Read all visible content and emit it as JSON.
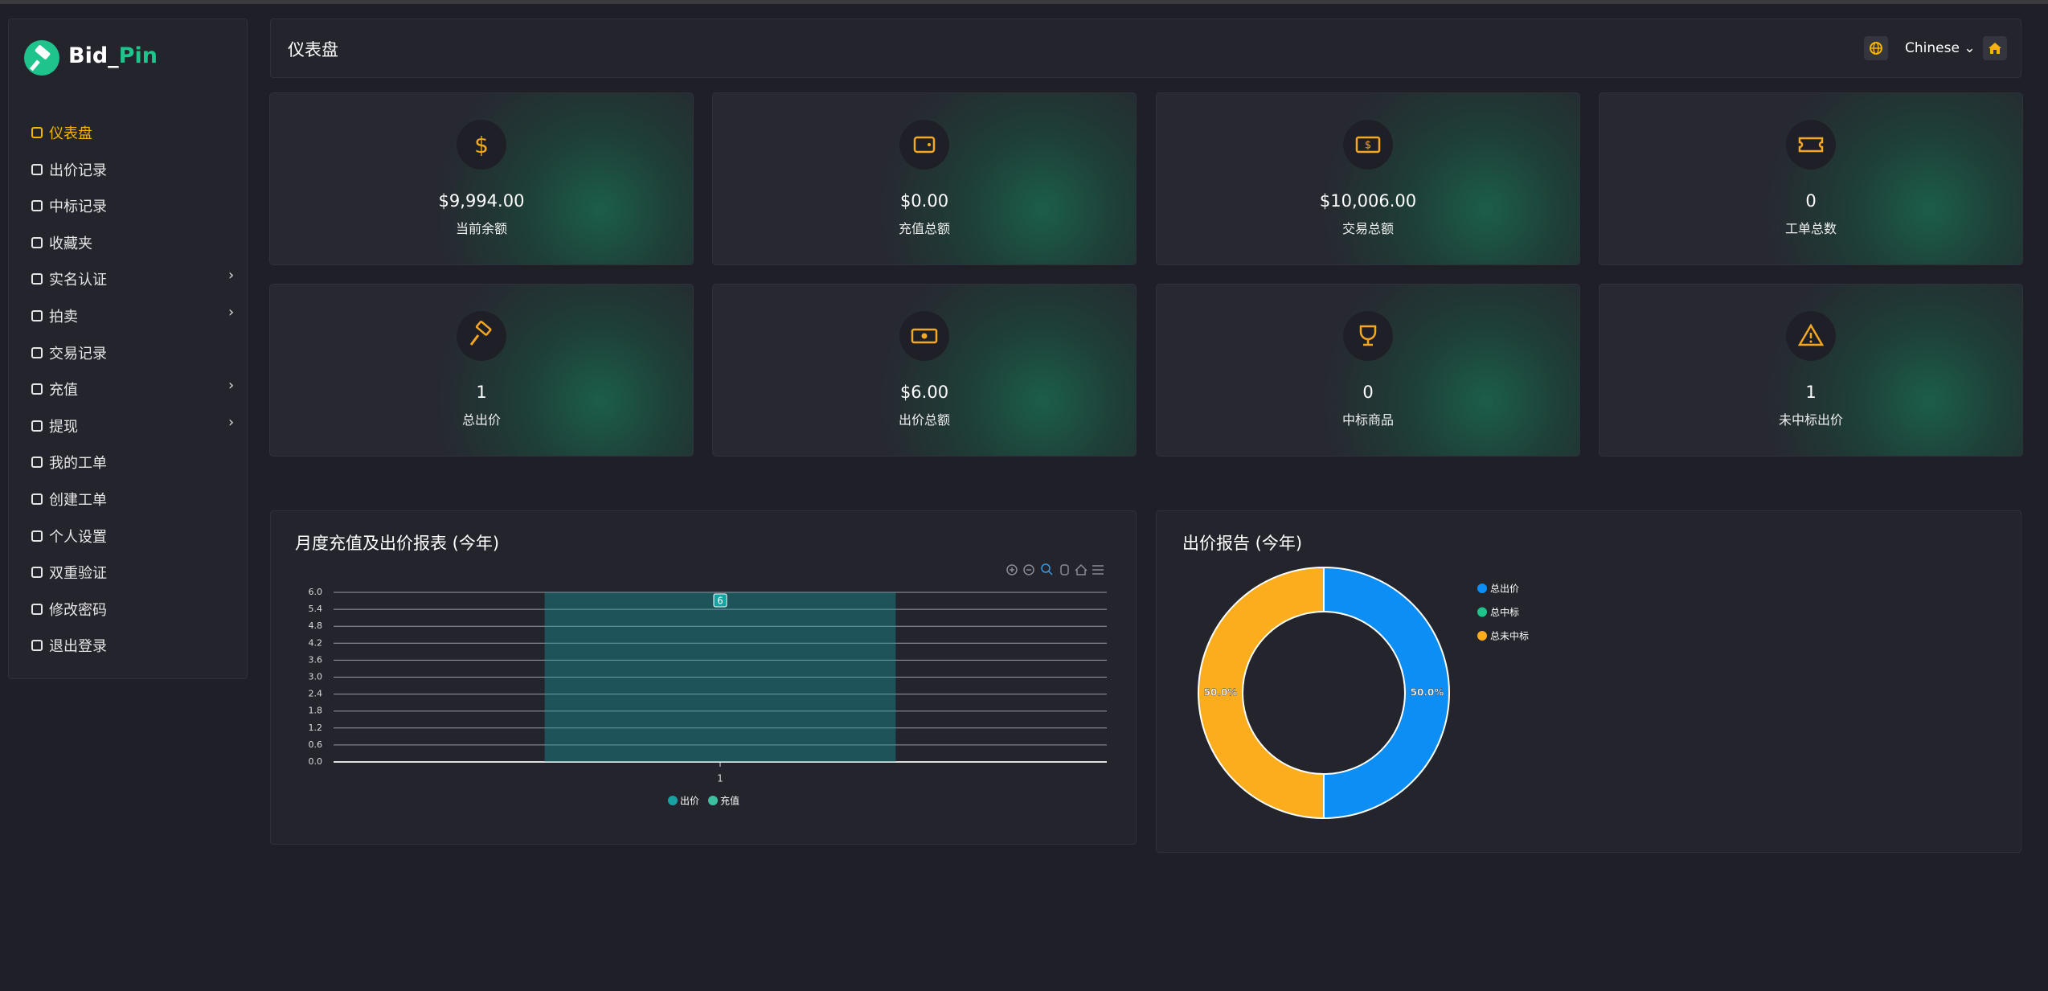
{
  "brand": {
    "first": "Bid_",
    "second": "Pin"
  },
  "menu": [
    {
      "label": "仪表盘",
      "active": true
    },
    {
      "label": "出价记录"
    },
    {
      "label": "中标记录"
    },
    {
      "label": "收藏夹"
    },
    {
      "label": "实名认证",
      "submenu": true
    },
    {
      "label": "拍卖",
      "submenu": true
    },
    {
      "label": "交易记录"
    },
    {
      "label": "充值",
      "submenu": true
    },
    {
      "label": "提现",
      "submenu": true
    },
    {
      "label": "我的工单"
    },
    {
      "label": "创建工单"
    },
    {
      "label": "个人设置"
    },
    {
      "label": "双重验证"
    },
    {
      "label": "修改密码"
    },
    {
      "label": "退出登录"
    }
  ],
  "header": {
    "title": "仪表盘",
    "language": "Chinese"
  },
  "cards": [
    {
      "value": "$9,994.00",
      "label": "当前余额"
    },
    {
      "value": "$0.00",
      "label": "充值总额"
    },
    {
      "value": "$10,006.00",
      "label": "交易总额"
    },
    {
      "value": "0",
      "label": "工单总数"
    },
    {
      "value": "1",
      "label": "总出价"
    },
    {
      "value": "$6.00",
      "label": "出价总额"
    },
    {
      "value": "0",
      "label": "中标商品"
    },
    {
      "value": "1",
      "label": "未中标出价"
    }
  ],
  "chart_data": [
    {
      "type": "bar",
      "title": "月度充值及出价报表 (今年)",
      "categories": [
        "1"
      ],
      "series": [
        {
          "name": "出价",
          "color": "#17a2a2",
          "values": [
            6
          ]
        },
        {
          "name": "充值",
          "color": "#3dbf9f",
          "values": [
            0
          ]
        }
      ],
      "ylim": [
        0,
        6
      ],
      "yticks": [
        {
          "value": 0,
          "label": "0.0"
        },
        0.6,
        1.2,
        1.8,
        2.4,
        {
          "value": 3,
          "label": "3.0"
        },
        3.6,
        4.2,
        4.8,
        5.4,
        {
          "value": 6,
          "label": "6.0"
        }
      ],
      "grid": true,
      "legend": "bottom"
    },
    {
      "type": "pie",
      "title": "出价报告 (今年)",
      "categories": [
        "总出价",
        "总中标",
        "总未中标"
      ],
      "values": [
        50,
        0,
        50
      ],
      "value_labels": [
        "50.0%",
        null,
        "50.0%"
      ],
      "colors": [
        "#0d8ef5",
        "#1fc48c",
        "#fbad1e"
      ],
      "donut": true,
      "legend": "right"
    }
  ]
}
